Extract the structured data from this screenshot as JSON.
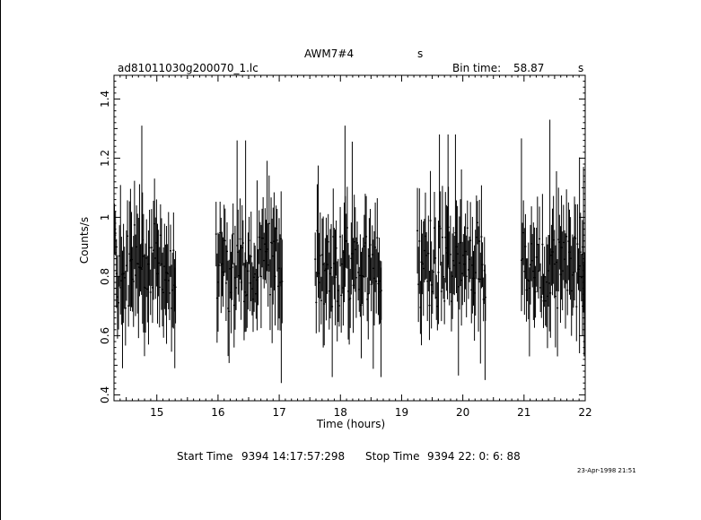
{
  "header": {
    "title": "AWM7#4",
    "title_unit": "s",
    "filename": "ad81011030g200070_1.lc",
    "bin_time_label": "Bin time:",
    "bin_time_value": "58.87",
    "bin_time_unit": "s"
  },
  "footer": {
    "start_label": "Start Time",
    "start_value": "9394 14:17:57:298",
    "stop_label": "Stop Time",
    "stop_value": "9394 22: 0: 6: 88",
    "timestamp": "23-Apr-1998 21:51"
  },
  "chart_data": {
    "type": "scatter",
    "xlabel": "Time (hours)",
    "ylabel": "Counts/s",
    "xlim": [
      14.3,
      22.0
    ],
    "ylim": [
      0.38,
      1.48
    ],
    "xticks": [
      "15",
      "16",
      "17",
      "18",
      "19",
      "20",
      "21",
      "22"
    ],
    "yticks": [
      "0.4",
      "0.6",
      "0.8",
      "1",
      "1.2",
      "1.4"
    ],
    "grid": false,
    "segments": [
      {
        "x_start": 14.3,
        "x_end": 15.31,
        "y_min": 0.49,
        "y_max": 1.31,
        "y_center": 0.83
      },
      {
        "x_start": 15.96,
        "x_end": 17.05,
        "y_min": 0.44,
        "y_max": 1.26,
        "y_center": 0.83
      },
      {
        "x_start": 17.58,
        "x_end": 18.68,
        "y_min": 0.46,
        "y_max": 1.31,
        "y_center": 0.83
      },
      {
        "x_start": 19.25,
        "x_end": 20.38,
        "y_min": 0.45,
        "y_max": 1.28,
        "y_center": 0.84
      },
      {
        "x_start": 20.95,
        "x_end": 22.0,
        "y_min": 0.53,
        "y_max": 1.33,
        "y_center": 0.84
      }
    ]
  }
}
